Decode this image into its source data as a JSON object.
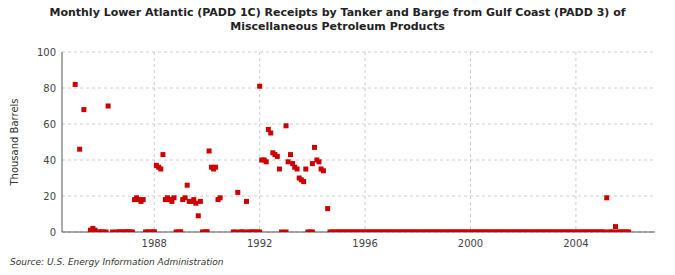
{
  "chart_data": {
    "type": "scatter",
    "title": "Monthly Lower Atlantic (PADD 1C) Receipts by Tanker and Barge from Gulf Coast (PADD 3) of\nMiscellaneous Petroleum Products",
    "ylabel": "Thousand Barrels",
    "source": "Source: U.S. Energy Information Administration",
    "color": "#cc0000",
    "marker": "square",
    "grid": true,
    "xlim": [
      1984.5,
      2007.0
    ],
    "ylim": [
      0,
      100
    ],
    "yticks": [
      0,
      20,
      40,
      60,
      80,
      100
    ],
    "xticks": [
      1988,
      1992,
      1996,
      2000,
      2004
    ],
    "x": [
      1985.0,
      1985.17,
      1985.33,
      1986.25,
      1986.42,
      1987.0,
      1987.08,
      1987.17,
      1987.25,
      1987.33,
      1987.42,
      1987.5,
      1987.58,
      1987.67,
      1987.75,
      1987.83,
      1987.92,
      1988.0,
      1988.08,
      1988.17,
      1988.25,
      1988.33,
      1988.42,
      1988.5,
      1988.58,
      1988.67,
      1988.75,
      1988.83,
      1988.92,
      1989.0,
      1989.08,
      1989.17,
      1989.25,
      1989.33,
      1989.42,
      1989.5,
      1989.58,
      1989.67,
      1989.75,
      1989.83,
      1989.92,
      1990.0,
      1990.08,
      1990.17,
      1990.25,
      1990.33,
      1990.42,
      1990.5,
      1991.17,
      1991.5,
      1992.0,
      1992.08,
      1992.17,
      1992.25,
      1992.33,
      1992.42,
      1992.5,
      1992.58,
      1992.67,
      1992.75,
      1992.83,
      1993.0,
      1993.08,
      1993.17,
      1993.25,
      1993.33,
      1993.42,
      1993.5,
      1993.58,
      1993.67,
      1993.75,
      1993.83,
      1993.92,
      1994.0,
      1994.08,
      1994.17,
      1994.25,
      1994.33,
      1994.42,
      1994.58,
      1995.42,
      2005.17,
      2005.5,
      1985.58,
      1985.67,
      1985.75,
      1985.83,
      1985.92,
      1986.0,
      1986.08,
      1986.17,
      1986.58,
      1986.67,
      1986.75,
      1986.83,
      1986.92,
      1987.0,
      1988.0,
      1989.0,
      1990.0,
      1991.0,
      1991.08,
      1991.25,
      1991.33,
      1991.42,
      1991.58,
      1991.67,
      1991.75,
      1991.83,
      1991.92,
      1992.0,
      1993.0,
      1994.0,
      1994.67,
      1994.75,
      1994.83,
      1994.92,
      1995.0,
      1995.08,
      1995.17,
      1995.25,
      1995.33,
      1995.5,
      1995.58,
      1995.67,
      1995.75,
      1995.83,
      1995.92,
      1996.0,
      1996.08,
      1996.17,
      1996.25,
      1996.33,
      1996.42,
      1996.5,
      1996.58,
      1996.67,
      1996.75,
      1996.83,
      1996.92,
      1997.0,
      1997.08,
      1997.17,
      1997.25,
      1997.33,
      1997.42,
      1997.5,
      1997.58,
      1997.67,
      1997.75,
      1997.83,
      1997.92,
      1998.0,
      1998.08,
      1998.17,
      1998.25,
      1998.33,
      1998.42,
      1998.5,
      1998.58,
      1998.67,
      1998.75,
      1998.83,
      1998.92,
      1999.0,
      1999.08,
      1999.17,
      1999.25,
      1999.33,
      1999.42,
      1999.5,
      1999.58,
      1999.67,
      1999.75,
      1999.83,
      1999.92,
      2000.0,
      2000.08,
      2000.17,
      2000.25,
      2000.33,
      2000.42,
      2000.5,
      2000.58,
      2000.67,
      2000.75,
      2000.83,
      2000.92,
      2001.0,
      2001.08,
      2001.17,
      2001.25,
      2001.33,
      2001.42,
      2001.5,
      2001.58,
      2001.67,
      2001.75,
      2001.83,
      2001.92,
      2002.0,
      2002.08,
      2002.17,
      2002.25,
      2002.33,
      2002.42,
      2002.5,
      2002.58,
      2002.67,
      2002.75,
      2002.83,
      2002.92,
      2003.0,
      2003.08,
      2003.17,
      2003.25,
      2003.33,
      2003.42,
      2003.5,
      2003.58,
      2003.67,
      2003.75,
      2003.83,
      2003.92,
      2004.0,
      2004.08,
      2004.17,
      2004.25,
      2004.33,
      2004.42,
      2004.5,
      2004.58,
      2004.67,
      2004.75,
      2004.83,
      2004.92,
      2005.0,
      2005.08,
      2005.25,
      2005.33,
      2005.42,
      2005.58,
      2005.67,
      2005.75,
      2005.83,
      2005.92,
      2006.0
    ],
    "values": [
      82,
      46,
      68,
      70,
      0,
      0,
      0,
      0,
      18,
      19,
      18,
      17,
      18,
      0,
      0,
      0,
      0,
      0,
      37,
      36,
      35,
      43,
      18,
      19,
      18,
      17,
      19,
      0,
      0,
      0,
      18,
      19,
      26,
      17,
      17,
      18,
      16,
      9,
      17,
      0,
      0,
      0,
      45,
      36,
      35,
      36,
      18,
      19,
      22,
      17,
      81,
      40,
      40,
      39,
      57,
      55,
      44,
      43,
      42,
      35,
      0,
      59,
      39,
      43,
      38,
      36,
      35,
      30,
      29,
      28,
      35,
      0,
      0,
      38,
      47,
      40,
      39,
      35,
      34,
      13,
      0,
      19,
      3,
      1,
      2,
      1,
      0,
      0,
      0,
      0,
      0,
      0,
      0,
      0,
      0,
      0,
      0,
      0,
      0,
      0,
      0,
      0,
      0,
      0,
      0,
      0,
      0,
      0,
      0,
      0,
      0,
      0,
      0,
      0,
      0,
      0,
      0,
      0,
      0,
      0,
      0,
      0,
      0,
      0,
      0,
      0,
      0,
      0,
      0,
      0,
      0,
      0,
      0,
      0,
      0,
      0,
      0,
      0,
      0,
      0,
      0,
      0,
      0,
      0,
      0,
      0,
      0,
      0,
      0,
      0,
      0,
      0,
      0,
      0,
      0,
      0,
      0,
      0,
      0,
      0,
      0,
      0,
      0,
      0,
      0,
      0,
      0,
      0,
      0,
      0,
      0,
      0,
      0,
      0,
      0,
      0,
      0,
      0,
      0,
      0,
      0,
      0,
      0,
      0,
      0,
      0,
      0,
      0,
      0,
      0,
      0,
      0,
      0,
      0,
      0,
      0,
      0,
      0,
      0,
      0,
      0,
      0,
      0,
      0,
      0,
      0,
      0,
      0,
      0,
      0,
      0,
      0,
      0,
      0,
      0,
      0,
      0,
      0,
      0,
      0,
      0,
      0,
      0,
      0,
      0,
      0,
      0,
      0,
      0,
      0,
      0,
      0,
      0,
      0,
      0,
      0,
      0,
      0,
      0,
      0,
      0,
      0,
      0,
      0,
      0,
      0,
      0
    ]
  }
}
